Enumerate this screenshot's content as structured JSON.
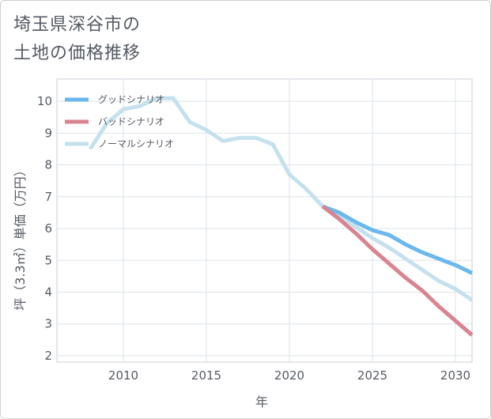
{
  "chart_data": {
    "type": "line",
    "title_lines": [
      "埼玉県深谷市の",
      "土地の価格推移"
    ],
    "xlabel": "年",
    "ylabel": "坪（3.3㎡）単価（万円）",
    "xlim": [
      2006,
      2031
    ],
    "ylim": [
      1.8,
      10.7
    ],
    "x_ticks": [
      2010,
      2015,
      2020,
      2025,
      2030
    ],
    "y_ticks": [
      2,
      3,
      4,
      5,
      6,
      7,
      8,
      9,
      10
    ],
    "grid": true,
    "legend_position": "top-left",
    "series": [
      {
        "name": "グッドシナリオ",
        "color": "#6ab8ee",
        "x": [
          2022,
          2023,
          2024,
          2025,
          2026,
          2027,
          2028,
          2029,
          2030,
          2031
        ],
        "y": [
          6.7,
          6.5,
          6.2,
          5.95,
          5.8,
          5.5,
          5.25,
          5.05,
          4.85,
          4.6
        ]
      },
      {
        "name": "バッドシナリオ",
        "color": "#d9848f",
        "x": [
          2022,
          2023,
          2024,
          2025,
          2026,
          2027,
          2028,
          2029,
          2030,
          2031
        ],
        "y": [
          6.7,
          6.3,
          5.85,
          5.35,
          4.9,
          4.45,
          4.05,
          3.55,
          3.1,
          2.65
        ]
      },
      {
        "name": "ノーマルシナリオ",
        "color": "#c5e1ee",
        "x": [
          2008,
          2009,
          2010,
          2011,
          2012,
          2013,
          2014,
          2015,
          2016,
          2017,
          2018,
          2019,
          2020,
          2021,
          2022,
          2023,
          2024,
          2025,
          2026,
          2027,
          2028,
          2029,
          2030,
          2031
        ],
        "y": [
          8.5,
          9.3,
          9.75,
          9.85,
          10.1,
          10.1,
          9.35,
          9.1,
          8.75,
          8.85,
          8.85,
          8.65,
          7.7,
          7.25,
          6.7,
          6.4,
          6.05,
          5.7,
          5.4,
          5.05,
          4.7,
          4.35,
          4.1,
          3.75
        ]
      }
    ]
  }
}
